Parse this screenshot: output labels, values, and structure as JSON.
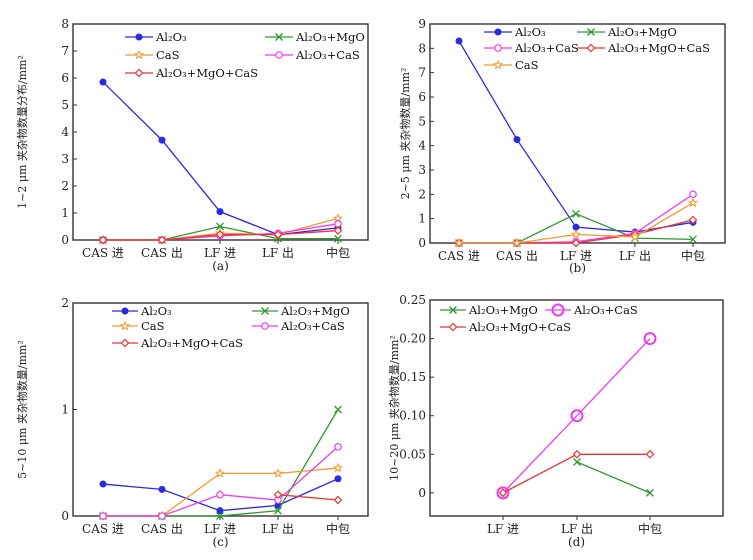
{
  "chart_data": [
    {
      "type": "line",
      "panel": "a",
      "caption": "(a)",
      "ylabel": "1~2 μm 夹杂物数量分布/mm²",
      "categories": [
        "CAS 进",
        "CAS 出",
        "LF 进",
        "LF 出",
        "中包"
      ],
      "ylim": [
        0,
        8
      ],
      "yticks": [
        0,
        1,
        2,
        3,
        4,
        5,
        6,
        7,
        8
      ],
      "ytick_labels": [
        "0",
        "1",
        "2",
        "3",
        "4",
        "5",
        "6",
        "7",
        "8"
      ],
      "legend_cols": 2,
      "series": [
        {
          "name": "Al₂O₃",
          "color": "#2a2ae0",
          "marker": "dot",
          "values": [
            5.85,
            3.7,
            1.05,
            0.2,
            0.45
          ],
          "legend_slot": [
            0,
            0
          ]
        },
        {
          "name": "Al₂O₃+MgO",
          "color": "#2e9a2e",
          "marker": "x",
          "values": [
            0,
            0,
            0.5,
            0.05,
            0.05
          ],
          "legend_slot": [
            1,
            0
          ]
        },
        {
          "name": "CaS",
          "color": "#f39a2e",
          "marker": "star",
          "values": [
            0,
            0,
            0.25,
            0.2,
            0.8
          ],
          "legend_slot": [
            0,
            1
          ]
        },
        {
          "name": "Al₂O₃+CaS",
          "color": "#ee3cee",
          "marker": "circle",
          "values": [
            0,
            0,
            0.15,
            0.25,
            0.6
          ],
          "legend_slot": [
            1,
            1
          ]
        },
        {
          "name": "Al₂O₃+MgO+CaS",
          "color": "#ee3333",
          "marker": "diamond",
          "values": [
            0,
            0,
            0.2,
            0.2,
            0.35
          ],
          "legend_slot": [
            0,
            2
          ]
        }
      ]
    },
    {
      "type": "line",
      "panel": "b",
      "caption": "(b)",
      "ylabel": "2~5 μm 夹杂物数量/mm²",
      "categories": [
        "CAS 进",
        "CAS 出",
        "LF 进",
        "LF 出",
        "中包"
      ],
      "ylim": [
        0,
        9
      ],
      "yticks": [
        0,
        1,
        2,
        3,
        4,
        5,
        6,
        7,
        8,
        9
      ],
      "ytick_labels": [
        "0",
        "1",
        "2",
        "3",
        "4",
        "5",
        "6",
        "7",
        "8",
        "9"
      ],
      "series": [
        {
          "name": "Al₂O₃",
          "color": "#2a2ae0",
          "marker": "dot",
          "values": [
            8.3,
            4.25,
            0.65,
            0.45,
            0.85
          ],
          "legend_slot": [
            0,
            0
          ]
        },
        {
          "name": "Al₂O₃+MgO",
          "color": "#2e9a2e",
          "marker": "x",
          "values": [
            0,
            0,
            1.2,
            0.2,
            0.15
          ],
          "legend_slot": [
            1,
            0
          ]
        },
        {
          "name": "Al₂O₃+CaS",
          "color": "#ee3cee",
          "marker": "circle",
          "values": [
            0,
            0,
            0.05,
            0.4,
            2.0
          ],
          "legend_slot": [
            0,
            1
          ]
        },
        {
          "name": "Al₂O₃+MgO+CaS",
          "color": "#ee3333",
          "marker": "diamond",
          "values": [
            0,
            0,
            0,
            0.35,
            0.95
          ],
          "legend_slot": [
            1,
            1
          ]
        },
        {
          "name": "CaS",
          "color": "#f39a2e",
          "marker": "star",
          "values": [
            0,
            0,
            0.35,
            0.25,
            1.65
          ],
          "legend_slot": [
            0,
            2
          ]
        }
      ]
    },
    {
      "type": "line",
      "panel": "c",
      "caption": "(c)",
      "ylabel": "5~10 μm 夹杂物数量/mm²",
      "categories": [
        "CAS 进",
        "CAS 出",
        "LF 进",
        "LF 出",
        "中包"
      ],
      "ylim": [
        0,
        2
      ],
      "yticks": [
        0,
        1,
        2
      ],
      "ytick_labels": [
        "0",
        "1",
        "2"
      ],
      "series": [
        {
          "name": "Al₂O₃",
          "color": "#2a2ae0",
          "marker": "dot",
          "values": [
            0.3,
            0.25,
            0.05,
            0.1,
            0.35
          ],
          "legend_slot": [
            0,
            0
          ]
        },
        {
          "name": "Al₂O₃+MgO",
          "color": "#2e9a2e",
          "marker": "x",
          "values": [
            0,
            0,
            0,
            0.05,
            1.0
          ],
          "legend_slot": [
            1,
            0
          ]
        },
        {
          "name": "CaS",
          "color": "#f39a2e",
          "marker": "star",
          "values": [
            0,
            0,
            0.4,
            0.4,
            0.45
          ],
          "legend_slot": [
            0,
            1
          ]
        },
        {
          "name": "Al₂O₃+CaS",
          "color": "#ee3cee",
          "marker": "circle",
          "values": [
            0,
            0,
            0.2,
            0.15,
            0.65
          ],
          "legend_slot": [
            1,
            1
          ]
        },
        {
          "name": "Al₂O₃+MgO+CaS",
          "color": "#ee3333",
          "marker": "diamond",
          "values": [
            null,
            null,
            null,
            0.2,
            0.15
          ],
          "legend_slot": [
            0,
            2
          ]
        }
      ]
    },
    {
      "type": "line",
      "panel": "d",
      "caption": "(d)",
      "ylabel": "10~20 μm 夹杂物数量/mm²",
      "categories": [
        "",
        "LF 进",
        "LF 出",
        "中包",
        ""
      ],
      "ylim": [
        -0.03,
        0.25
      ],
      "yticks": [
        0,
        0.05,
        0.1,
        0.15,
        0.2,
        0.25
      ],
      "ytick_labels": [
        "0",
        "0.05",
        "0.10",
        "0.15",
        "0.20",
        "0.25"
      ],
      "series": [
        {
          "name": "Al₂O₃+MgO",
          "color": "#2e9a2e",
          "marker": "x",
          "values": [
            null,
            null,
            0.04,
            0,
            null
          ],
          "legend_slot": [
            0,
            0
          ]
        },
        {
          "name": "Al₂O₃+CaS",
          "color": "#ee3cee",
          "marker": "bigcircle",
          "values": [
            null,
            0,
            0.1,
            0.2,
            null
          ],
          "legend_slot": [
            1,
            0
          ]
        },
        {
          "name": "Al₂O₃+MgO+CaS",
          "color": "#ee3333",
          "marker": "diamond",
          "values": [
            null,
            0,
            0.05,
            0.05,
            null
          ],
          "legend_slot": [
            0,
            1
          ]
        }
      ]
    }
  ]
}
